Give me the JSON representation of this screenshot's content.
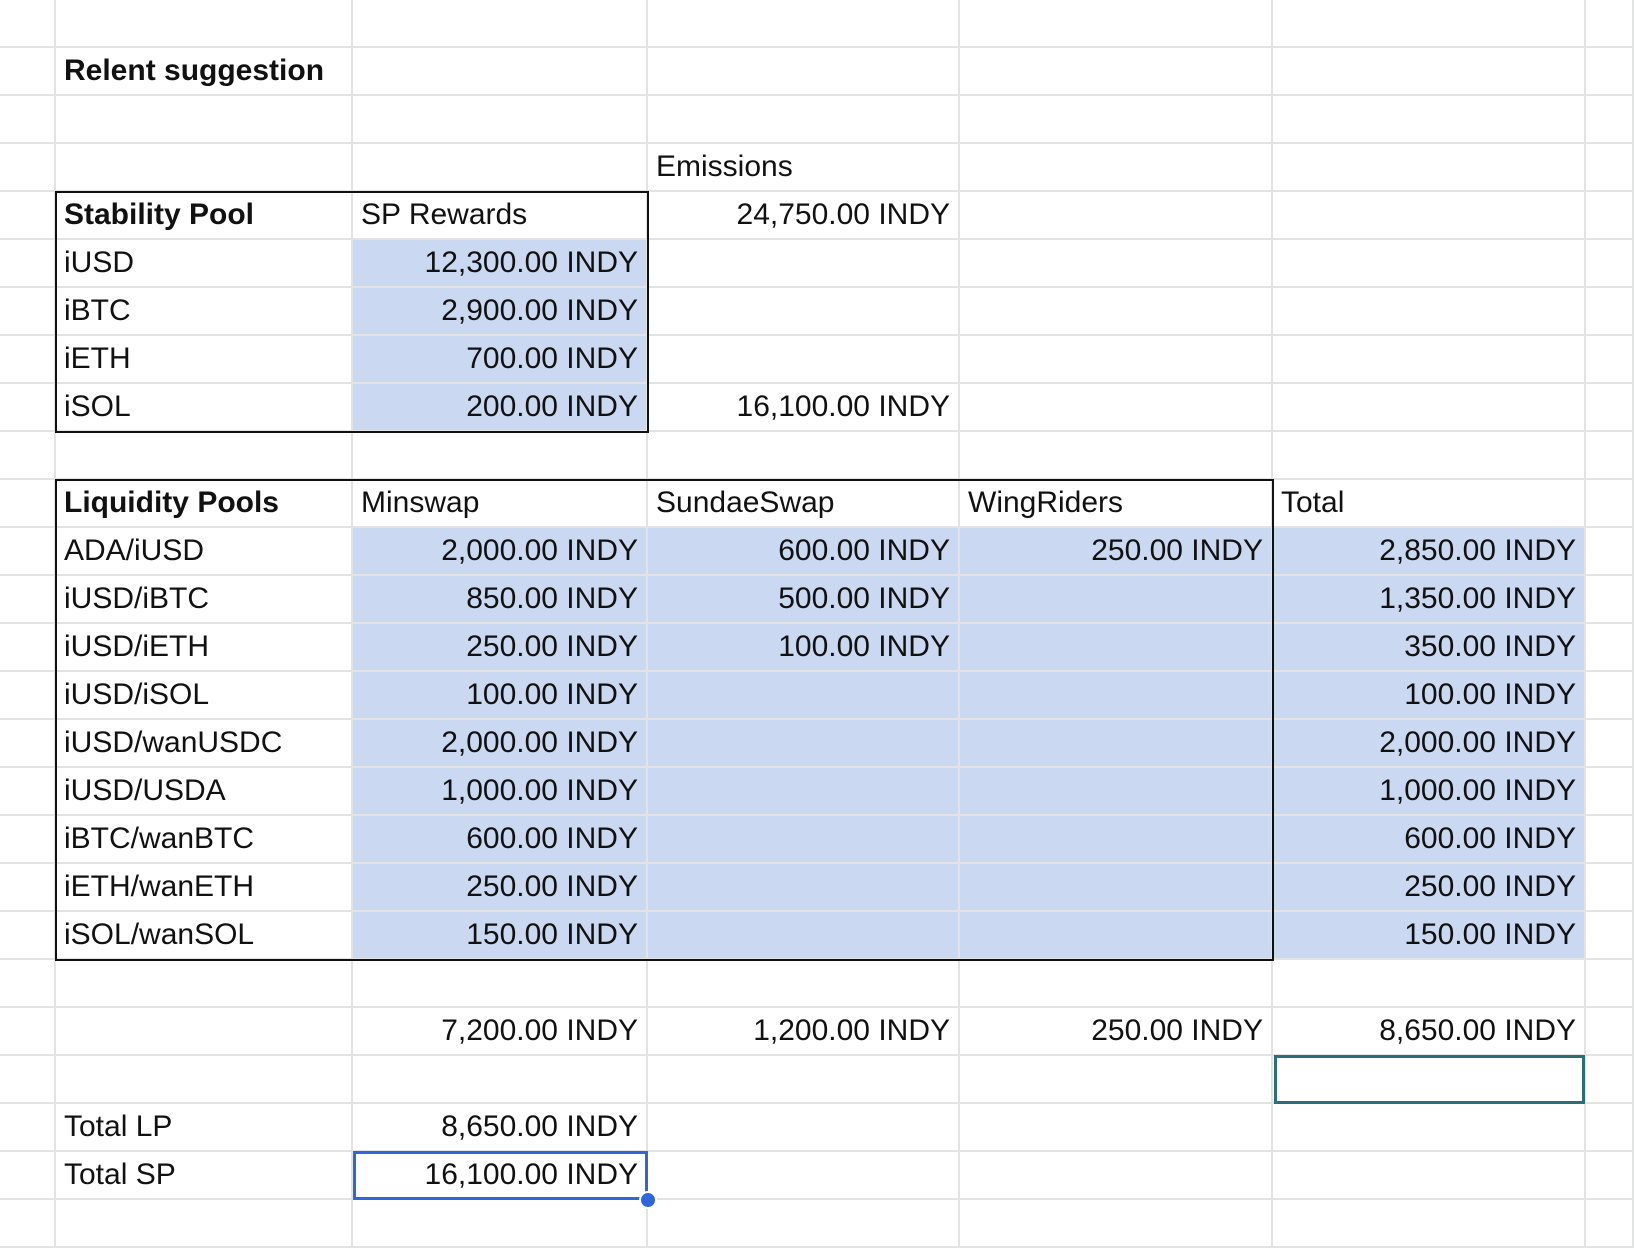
{
  "title": "Relent suggestion",
  "emissions": {
    "label": "Emissions",
    "sp_value": "24,750.00 INDY",
    "lp_value": "16,100.00 INDY"
  },
  "stability_pool": {
    "header": "Stability Pool",
    "rewards_header": "SP Rewards",
    "rows": [
      {
        "asset": "iUSD",
        "reward": "12,300.00 INDY"
      },
      {
        "asset": "iBTC",
        "reward": "2,900.00 INDY"
      },
      {
        "asset": "iETH",
        "reward": "700.00 INDY"
      },
      {
        "asset": "iSOL",
        "reward": "200.00 INDY"
      }
    ]
  },
  "liquidity_pools": {
    "header": "Liquidity Pools",
    "columns": [
      "Minswap",
      "SundaeSwap",
      "WingRiders",
      "Total"
    ],
    "rows": [
      {
        "pair": "ADA/iUSD",
        "cells": [
          "2,000.00 INDY",
          "600.00 INDY",
          "250.00 INDY",
          "2,850.00 INDY"
        ]
      },
      {
        "pair": "iUSD/iBTC",
        "cells": [
          "850.00 INDY",
          "500.00 INDY",
          "",
          "1,350.00 INDY"
        ]
      },
      {
        "pair": "iUSD/iETH",
        "cells": [
          "250.00 INDY",
          "100.00 INDY",
          "",
          "350.00 INDY"
        ]
      },
      {
        "pair": "iUSD/iSOL",
        "cells": [
          "100.00 INDY",
          "",
          "",
          "100.00 INDY"
        ]
      },
      {
        "pair": "iUSD/wanUSDC",
        "cells": [
          "2,000.00 INDY",
          "",
          "",
          "2,000.00 INDY"
        ]
      },
      {
        "pair": "iUSD/USDA",
        "cells": [
          "1,000.00 INDY",
          "",
          "",
          "1,000.00 INDY"
        ]
      },
      {
        "pair": "iBTC/wanBTC",
        "cells": [
          "600.00 INDY",
          "",
          "",
          "600.00 INDY"
        ]
      },
      {
        "pair": "iETH/wanETH",
        "cells": [
          "250.00 INDY",
          "",
          "",
          "250.00 INDY"
        ]
      },
      {
        "pair": "iSOL/wanSOL",
        "cells": [
          "150.00 INDY",
          "",
          "",
          "150.00 INDY"
        ]
      }
    ],
    "totals": [
      "7,200.00 INDY",
      "1,200.00 INDY",
      "250.00 INDY",
      "8,650.00 INDY"
    ]
  },
  "summary": {
    "total_lp_label": "Total LP",
    "total_lp_value": "8,650.00 INDY",
    "total_sp_label": "Total SP",
    "total_sp_value": "16,100.00 INDY"
  },
  "colors": {
    "highlight": "#cad8f2",
    "gridline": "#e2e3e3",
    "selection": "#2f66d8",
    "secondary_selection": "#2c6e77"
  }
}
